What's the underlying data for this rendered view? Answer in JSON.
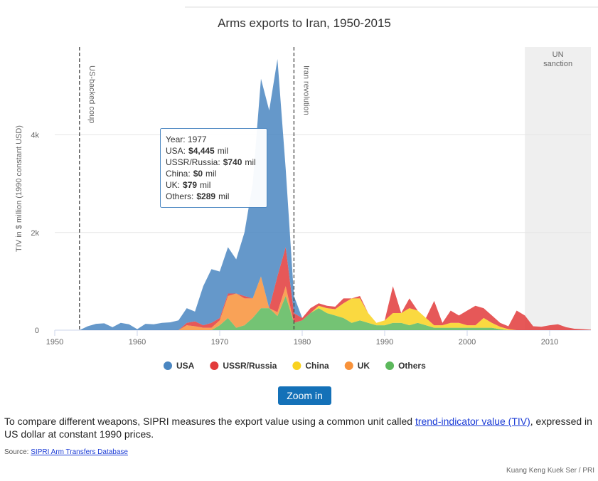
{
  "chart_data": {
    "type": "stacked-area",
    "title": "Arms exports to Iran, 1950-2015",
    "y_axis_label": "TIV in $ million (1990 constant USD)",
    "x": [
      1950,
      1951,
      1952,
      1953,
      1954,
      1955,
      1956,
      1957,
      1958,
      1959,
      1960,
      1961,
      1962,
      1963,
      1964,
      1965,
      1966,
      1967,
      1968,
      1969,
      1970,
      1971,
      1972,
      1973,
      1974,
      1975,
      1976,
      1977,
      1978,
      1979,
      1980,
      1981,
      1982,
      1983,
      1984,
      1985,
      1986,
      1987,
      1988,
      1989,
      1990,
      1991,
      1992,
      1993,
      1994,
      1995,
      1996,
      1997,
      1998,
      1999,
      2000,
      2001,
      2002,
      2003,
      2004,
      2005,
      2006,
      2007,
      2008,
      2009,
      2010,
      2011,
      2012,
      2013,
      2014,
      2015
    ],
    "xlim": [
      1950,
      2015
    ],
    "xticks": [
      1950,
      1960,
      1970,
      1980,
      1990,
      2000,
      2010
    ],
    "ylim": [
      0,
      5800
    ],
    "yticks": [
      0,
      {
        "value": 2000,
        "label": "2k"
      },
      {
        "value": 4000,
        "label": "4k"
      }
    ],
    "grid": true,
    "series": [
      {
        "name": "USA",
        "color": "#4a86c1",
        "values": [
          0,
          0,
          0,
          0,
          80,
          130,
          140,
          60,
          150,
          120,
          20,
          130,
          120,
          150,
          160,
          200,
          300,
          200,
          800,
          1100,
          950,
          950,
          700,
          1300,
          2350,
          4050,
          4050,
          4445,
          1600,
          350,
          0,
          0,
          0,
          0,
          0,
          0,
          0,
          0,
          0,
          0,
          0,
          0,
          0,
          0,
          0,
          0,
          0,
          0,
          0,
          0,
          0,
          0,
          0,
          0,
          0,
          0,
          0,
          0,
          0,
          0,
          0,
          0,
          0,
          0,
          0,
          0
        ]
      },
      {
        "name": "USSR/Russia",
        "color": "#e23b3b",
        "values": [
          0,
          0,
          0,
          0,
          0,
          0,
          0,
          0,
          0,
          0,
          0,
          0,
          0,
          0,
          0,
          0,
          50,
          100,
          50,
          100,
          50,
          50,
          0,
          50,
          0,
          0,
          0,
          740,
          800,
          200,
          50,
          100,
          50,
          50,
          50,
          100,
          0,
          50,
          0,
          0,
          0,
          550,
          0,
          200,
          0,
          0,
          500,
          50,
          250,
          150,
          300,
          400,
          200,
          150,
          80,
          60,
          400,
          300,
          80,
          70,
          100,
          120,
          60,
          30,
          20,
          10
        ]
      },
      {
        "name": "China",
        "color": "#f9d21f",
        "values": [
          0,
          0,
          0,
          0,
          0,
          0,
          0,
          0,
          0,
          0,
          0,
          0,
          0,
          0,
          0,
          0,
          0,
          0,
          0,
          0,
          0,
          0,
          0,
          0,
          0,
          0,
          0,
          0,
          0,
          0,
          0,
          0,
          50,
          100,
          130,
          300,
          500,
          450,
          200,
          50,
          100,
          200,
          200,
          350,
          250,
          150,
          50,
          50,
          100,
          100,
          50,
          50,
          200,
          100,
          50,
          20,
          0,
          0,
          0,
          0,
          0,
          0,
          0,
          0,
          0,
          0
        ]
      },
      {
        "name": "UK",
        "color": "#f8923a",
        "values": [
          0,
          0,
          0,
          0,
          0,
          0,
          0,
          0,
          0,
          0,
          0,
          0,
          0,
          0,
          0,
          0,
          100,
          80,
          50,
          50,
          100,
          450,
          700,
          550,
          400,
          650,
          0,
          79,
          200,
          0,
          0,
          0,
          0,
          0,
          0,
          0,
          0,
          0,
          0,
          0,
          0,
          0,
          0,
          0,
          0,
          0,
          0,
          0,
          0,
          0,
          0,
          0,
          0,
          0,
          0,
          0,
          0,
          0,
          0,
          0,
          0,
          0,
          0,
          0,
          0,
          0
        ]
      },
      {
        "name": "Others",
        "color": "#5cb85c",
        "values": [
          0,
          0,
          0,
          0,
          0,
          0,
          0,
          0,
          0,
          0,
          0,
          0,
          0,
          0,
          0,
          0,
          0,
          0,
          0,
          0,
          100,
          250,
          50,
          100,
          250,
          450,
          450,
          289,
          700,
          150,
          200,
          350,
          450,
          350,
          300,
          250,
          150,
          200,
          150,
          100,
          100,
          150,
          150,
          100,
          150,
          100,
          50,
          50,
          50,
          50,
          50,
          50,
          50,
          50,
          20,
          0,
          0,
          0,
          0,
          0,
          0,
          0,
          0,
          0,
          0,
          0
        ]
      }
    ],
    "plot_lines": [
      {
        "value": 1953,
        "label": "US-backed coup"
      },
      {
        "value": 1979,
        "label": "Iran revolution"
      }
    ],
    "plot_bands": [
      {
        "from": 2007,
        "to": 2015,
        "label": "UN sanction"
      }
    ],
    "tooltip": {
      "title": "Year: 1977",
      "rows": [
        {
          "label": "USA:",
          "value": "$4,445",
          "unit": "mil"
        },
        {
          "label": "USSR/Russia:",
          "value": "$740",
          "unit": "mil"
        },
        {
          "label": "China:",
          "value": "$0",
          "unit": "mil"
        },
        {
          "label": "UK:",
          "value": "$79",
          "unit": "mil"
        },
        {
          "label": "Others:",
          "value": "$289",
          "unit": "mil"
        }
      ]
    }
  },
  "button": "Zoom in",
  "note": {
    "before": "To compare different weapons, SIPRI measures the export value using a common unit called ",
    "link": "trend-indicator value (TIV)",
    "after": ", expressed in US dollar at constant 1990 prices."
  },
  "source": {
    "label": "Source:",
    "link": "SIPRI Arm Transfers Database"
  },
  "credit": "Kuang Keng Kuek Ser / PRI"
}
